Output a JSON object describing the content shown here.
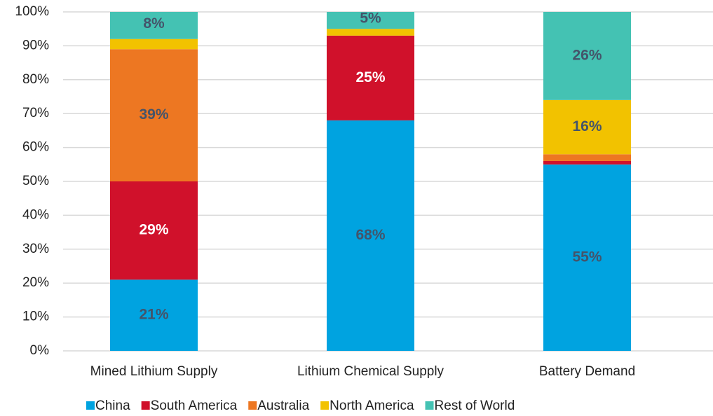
{
  "chart_data": {
    "type": "stacked_bar",
    "categories": [
      "Mined Lithium Supply",
      "Lithium Chemical Supply",
      "Battery Demand"
    ],
    "series": [
      {
        "name": "China",
        "color": "#00a3e0",
        "values": [
          21,
          68,
          55
        ],
        "value_labels": [
          "21%",
          "68%",
          "55%"
        ]
      },
      {
        "name": "South America",
        "color": "#d0112b",
        "values": [
          29,
          25,
          1
        ],
        "value_labels": [
          "29%",
          "25%",
          null
        ]
      },
      {
        "name": "Australia",
        "color": "#ed7722",
        "values": [
          39,
          0,
          2
        ],
        "value_labels": [
          "39%",
          null,
          null
        ]
      },
      {
        "name": "North America",
        "color": "#f2c200",
        "values": [
          3,
          2,
          16
        ],
        "value_labels": [
          null,
          null,
          "16%"
        ]
      },
      {
        "name": "Rest of World",
        "color": "#44c2b3",
        "values": [
          8,
          5,
          26
        ],
        "value_labels": [
          "8%",
          "5%",
          "26%"
        ]
      }
    ],
    "ylim": [
      0,
      100
    ],
    "yticks": [
      {
        "value": 0,
        "label": "0%"
      },
      {
        "value": 10,
        "label": "10%"
      },
      {
        "value": 20,
        "label": "20%"
      },
      {
        "value": 30,
        "label": "30%"
      },
      {
        "value": 40,
        "label": "40%"
      },
      {
        "value": 50,
        "label": "50%"
      },
      {
        "value": 60,
        "label": "60%"
      },
      {
        "value": 70,
        "label": "70%"
      },
      {
        "value": 80,
        "label": "80%"
      },
      {
        "value": 90,
        "label": "90%"
      },
      {
        "value": 100,
        "label": "100%"
      }
    ],
    "grid": true,
    "legend": "bottom"
  }
}
